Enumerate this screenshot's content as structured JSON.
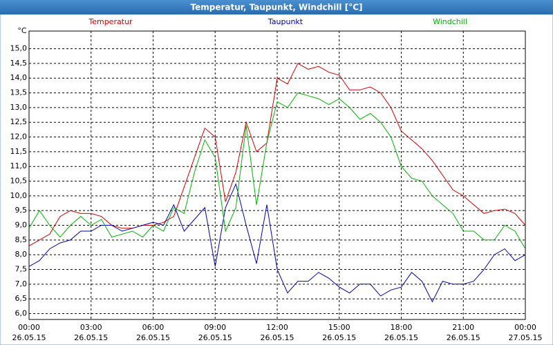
{
  "window_title": "Temperatur, Taupunkt, Windchill [°C]",
  "chart_data": {
    "type": "line",
    "y_unit": "°C",
    "x": [
      0,
      0.5,
      1,
      1.5,
      2,
      2.5,
      3,
      3.5,
      4,
      4.5,
      5,
      5.5,
      6,
      6.5,
      7,
      7.5,
      8,
      8.5,
      9,
      9.5,
      10,
      10.5,
      11,
      11.5,
      12,
      12.5,
      13,
      13.5,
      14,
      14.5,
      15,
      15.5,
      16,
      16.5,
      17,
      17.5,
      18,
      18.5,
      19,
      19.5,
      20,
      20.5,
      21,
      21.5,
      22,
      22.5,
      23,
      23.5,
      24
    ],
    "series": [
      {
        "name": "Temperatur",
        "color": "#d40000",
        "values": [
          8.3,
          8.5,
          8.7,
          9.3,
          9.5,
          9.4,
          9.4,
          9.3,
          9.0,
          8.9,
          8.9,
          9.0,
          9.0,
          9.1,
          9.3,
          10.3,
          11.3,
          12.3,
          12.0,
          9.8,
          10.8,
          12.5,
          11.5,
          11.8,
          14.0,
          13.8,
          14.5,
          14.3,
          14.4,
          14.2,
          14.1,
          13.6,
          13.6,
          13.7,
          13.5,
          13.0,
          12.2,
          11.9,
          11.6,
          11.2,
          10.7,
          10.2,
          10.0,
          9.7,
          9.4,
          9.5,
          9.55,
          9.4,
          9.0
        ]
      },
      {
        "name": "Taupunkt",
        "color": "#0000b4",
        "values": [
          7.6,
          7.8,
          8.2,
          8.4,
          8.5,
          8.8,
          8.8,
          9.0,
          9.0,
          8.8,
          8.9,
          9.0,
          9.1,
          9.0,
          9.7,
          8.8,
          9.2,
          9.6,
          7.6,
          9.6,
          10.4,
          9.0,
          7.7,
          9.7,
          7.5,
          6.7,
          7.1,
          7.1,
          7.4,
          7.2,
          6.9,
          6.7,
          7.0,
          7.0,
          6.6,
          6.8,
          6.9,
          7.4,
          7.1,
          6.4,
          7.1,
          7.0,
          7.0,
          7.1,
          7.5,
          8.0,
          8.2,
          7.8,
          8.0
        ]
      },
      {
        "name": "Windchill",
        "color": "#00b400",
        "values": [
          8.9,
          9.5,
          9.0,
          8.6,
          9.0,
          9.3,
          9.0,
          9.2,
          8.6,
          8.7,
          8.8,
          8.6,
          9.0,
          8.8,
          9.6,
          9.4,
          10.8,
          11.9,
          11.3,
          8.8,
          9.6,
          12.4,
          9.7,
          11.8,
          13.2,
          13.0,
          13.5,
          13.4,
          13.3,
          13.1,
          13.3,
          13.0,
          12.6,
          12.8,
          12.5,
          12.0,
          11.0,
          10.6,
          10.5,
          10.0,
          9.7,
          9.4,
          8.8,
          8.8,
          8.5,
          8.5,
          9.0,
          8.8,
          8.2
        ]
      }
    ],
    "xlim": [
      0,
      24
    ],
    "xticks": [
      {
        "value": 0,
        "label": "00:00",
        "date": "26.05.15"
      },
      {
        "value": 3,
        "label": "03:00",
        "date": "26.05.15"
      },
      {
        "value": 6,
        "label": "06:00",
        "date": "26.05.15"
      },
      {
        "value": 9,
        "label": "09:00",
        "date": "26.05.15"
      },
      {
        "value": 12,
        "label": "12:00",
        "date": "26.05.15"
      },
      {
        "value": 15,
        "label": "15:00",
        "date": "26.05.15"
      },
      {
        "value": 18,
        "label": "18:00",
        "date": "26.05.15"
      },
      {
        "value": 21,
        "label": "21:00",
        "date": "26.05.15"
      },
      {
        "value": 24,
        "label": "00:00",
        "date": "27.05.15"
      }
    ],
    "ylim": [
      5.8,
      15.6
    ],
    "yticks": [
      {
        "value": 6,
        "label": "6,0"
      },
      {
        "value": 6.5,
        "label": "6,5"
      },
      {
        "value": 7,
        "label": "7,0"
      },
      {
        "value": 7.5,
        "label": "7,5"
      },
      {
        "value": 8,
        "label": "8,0"
      },
      {
        "value": 8.5,
        "label": "8,5"
      },
      {
        "value": 9,
        "label": "9,0"
      },
      {
        "value": 9.5,
        "label": "9,5"
      },
      {
        "value": 10,
        "label": "10,0"
      },
      {
        "value": 10.5,
        "label": "10,5"
      },
      {
        "value": 11,
        "label": "11,0"
      },
      {
        "value": 11.5,
        "label": "11,5"
      },
      {
        "value": 12,
        "label": "12,0"
      },
      {
        "value": 12.5,
        "label": "12,5"
      },
      {
        "value": 13,
        "label": "13,0"
      },
      {
        "value": 13.5,
        "label": "13,5"
      },
      {
        "value": 14,
        "label": "14,0"
      },
      {
        "value": 14.5,
        "label": "14,5"
      },
      {
        "value": 15,
        "label": "15,0"
      }
    ],
    "grid": true
  }
}
